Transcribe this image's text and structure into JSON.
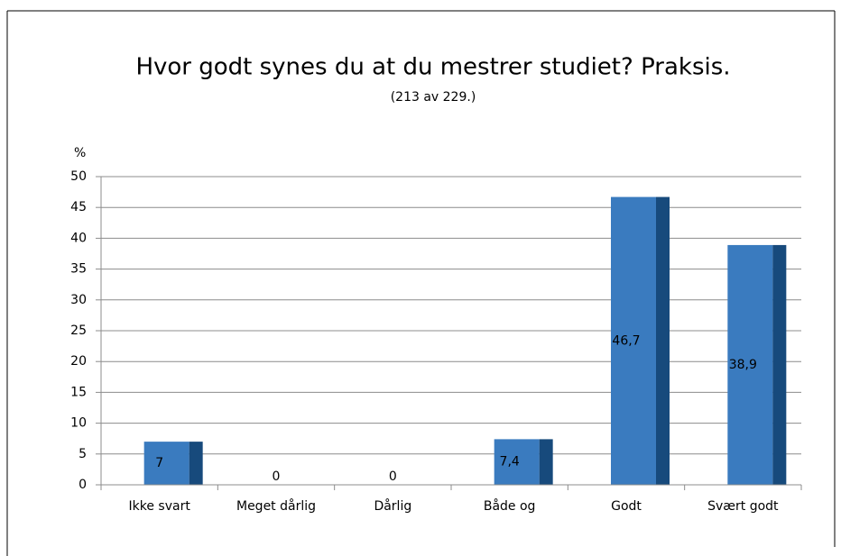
{
  "chart_data": {
    "type": "bar",
    "title": "Hvor godt synes du at du mestrer studiet? Praksis.",
    "subtitle": "(213 av 229.)",
    "y_label": "%",
    "categories": [
      "Ikke svart",
      "Meget dårlig",
      "Dårlig",
      "Både og",
      "Godt",
      "Svært godt"
    ],
    "values": [
      7,
      0,
      0,
      7.4,
      46.7,
      38.9
    ],
    "value_labels": [
      "7",
      "0",
      "0",
      "7,4",
      "46,7",
      "38,9"
    ],
    "color": "#3a7bbf",
    "side_color": "#174a7c",
    "ylim": [
      0,
      50
    ],
    "yticks": [
      0,
      5,
      10,
      15,
      20,
      25,
      30,
      35,
      40,
      45,
      50
    ],
    "grid": true
  }
}
